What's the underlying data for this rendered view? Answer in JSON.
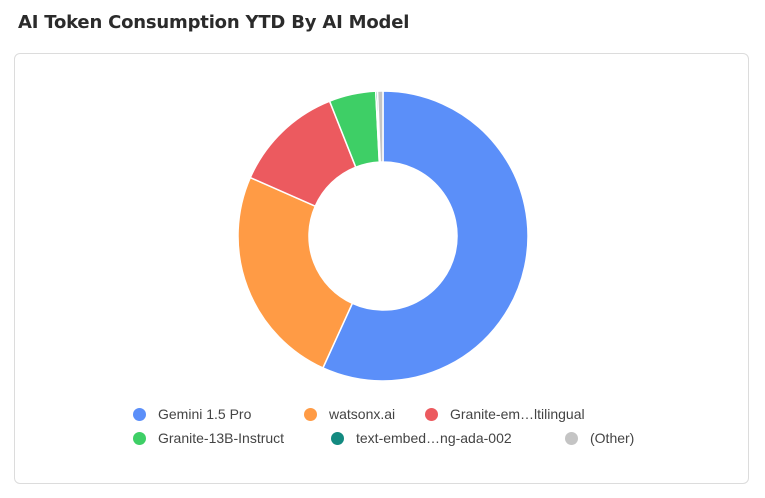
{
  "title": "AI Token Consumption YTD By AI Model",
  "chart_data": {
    "type": "donut",
    "title": "AI Token Consumption YTD By AI Model",
    "legend_position": "bottom",
    "series": [
      {
        "name": "Gemini 1.5 Pro",
        "share": 0.568,
        "color": "#5b8ff9"
      },
      {
        "name": "watsonx.ai",
        "share": 0.248,
        "color": "#ff9b45"
      },
      {
        "name": "Granite-em…ltilingual",
        "share": 0.124,
        "color": "#ec5a5f"
      },
      {
        "name": "Granite-13B-Instruct",
        "share": 0.052,
        "color": "#3ecf66"
      },
      {
        "name": "text-embed…ng-ada-002",
        "share": 0.002,
        "color": "#138a80"
      },
      {
        "name": "(Other)",
        "share": 0.006,
        "color": "#c4c4c4"
      }
    ]
  }
}
